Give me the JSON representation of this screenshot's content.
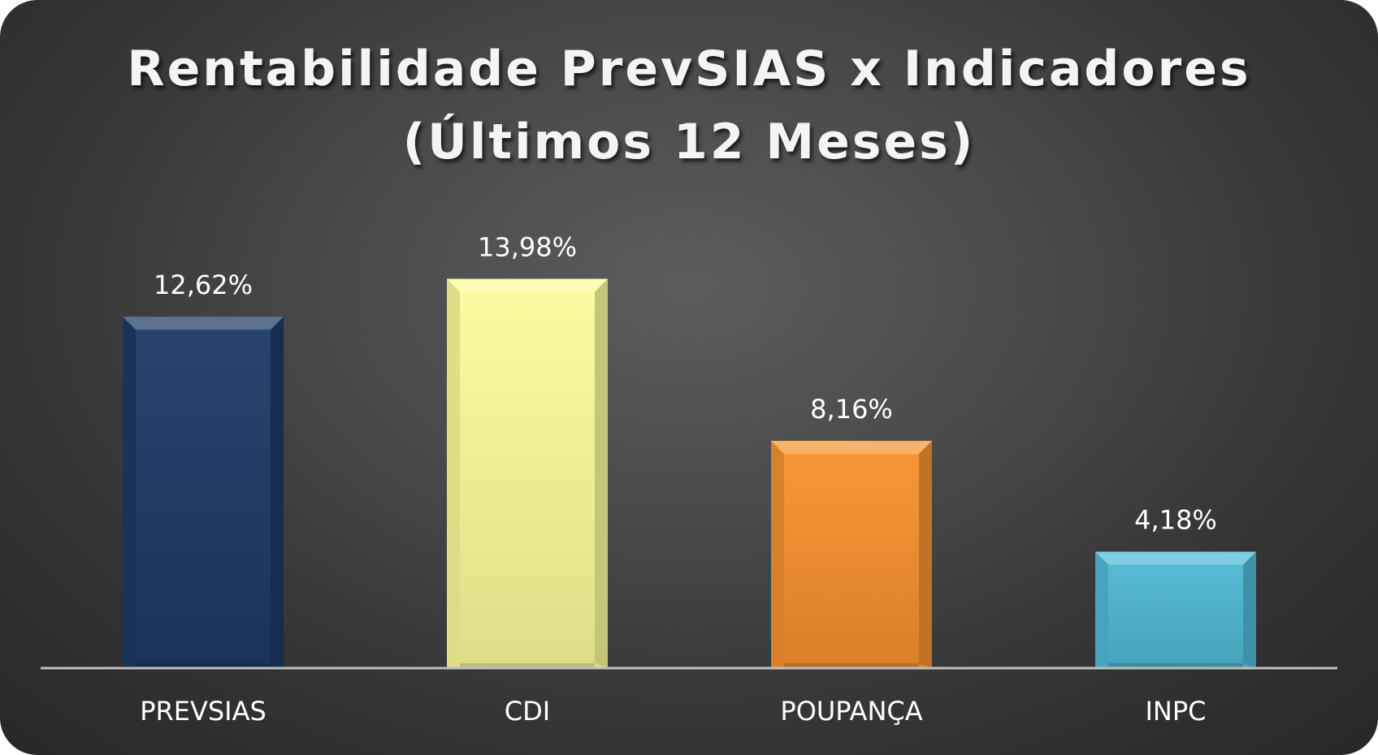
{
  "chart_data": {
    "type": "bar",
    "title": "Rentabilidade PrevSIAS x Indicadores",
    "subtitle": "(Últimos 12 Meses)",
    "categories": [
      "PREVSIAS",
      "CDI",
      "POUPANÇA",
      "INPC"
    ],
    "values": [
      12.62,
      13.98,
      8.16,
      4.18
    ],
    "data_labels": [
      "12,62%",
      "13,98%",
      "8,16%",
      "4,18%"
    ],
    "colors": [
      "#1e3a66",
      "#fcfc9c",
      "#f8922e",
      "#4fbad6"
    ],
    "ylim": [
      0,
      14.0
    ],
    "grid": false,
    "legend": "none",
    "xlabel": "",
    "ylabel": ""
  }
}
